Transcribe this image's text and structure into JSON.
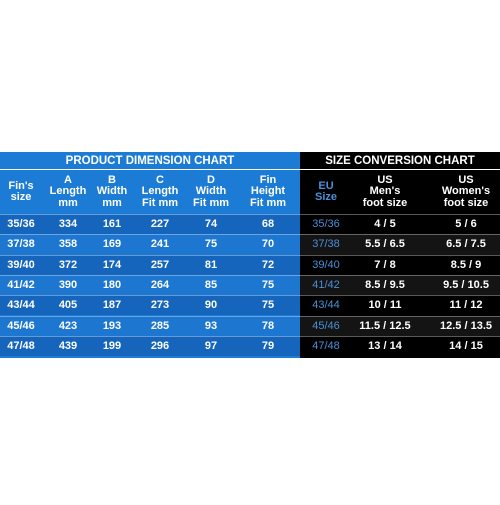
{
  "left": {
    "title": "PRODUCT DIMENSION CHART",
    "headers": [
      [
        "Fin's",
        "size"
      ],
      [
        "A",
        "Length",
        "mm"
      ],
      [
        "B",
        "Width",
        "mm"
      ],
      [
        "C",
        "Length",
        "Fit mm"
      ],
      [
        "D",
        "Width",
        "Fit mm"
      ],
      [
        "Fin",
        "Height",
        "Fit mm"
      ]
    ],
    "rows": [
      [
        "35/36",
        334,
        161,
        227,
        74,
        68
      ],
      [
        "37/38",
        358,
        169,
        241,
        75,
        70
      ],
      [
        "39/40",
        372,
        174,
        257,
        81,
        72
      ],
      [
        "41/42",
        390,
        180,
        264,
        85,
        75
      ],
      [
        "43/44",
        405,
        187,
        273,
        90,
        75
      ],
      [
        "45/46",
        423,
        193,
        285,
        93,
        78
      ],
      [
        "47/48",
        439,
        199,
        296,
        97,
        79
      ]
    ]
  },
  "right": {
    "title": "SIZE CONVERSION CHART",
    "headers": [
      [
        "EU",
        "Size"
      ],
      [
        "US",
        "Men's",
        "foot size"
      ],
      [
        "US",
        "Women's",
        "foot size"
      ]
    ],
    "rows": [
      [
        "35/36",
        "4 / 5",
        "5 / 6"
      ],
      [
        "37/38",
        "5.5 / 6.5",
        "6.5 / 7.5"
      ],
      [
        "39/40",
        "7 / 8",
        "8.5 / 9"
      ],
      [
        "41/42",
        "8.5 / 9.5",
        "9.5 / 10.5"
      ],
      [
        "43/44",
        "10 / 11",
        "11 / 12"
      ],
      [
        "45/46",
        "11.5 / 12.5",
        "12.5 / 13.5"
      ],
      [
        "47/48",
        "13 / 14",
        "14 / 15"
      ]
    ]
  }
}
